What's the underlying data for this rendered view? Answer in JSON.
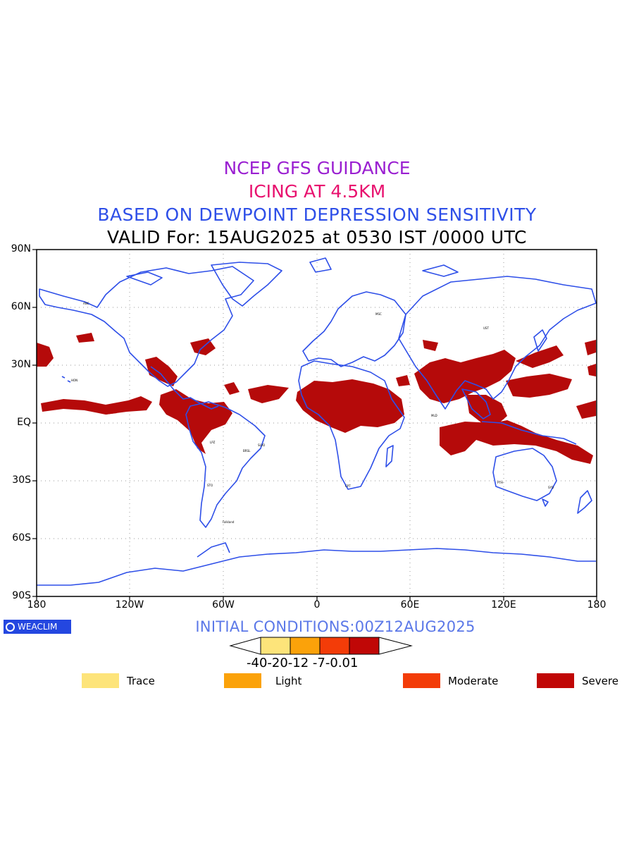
{
  "titles": {
    "line1": "NCEP GFS GUIDANCE",
    "line2": "ICING AT 4.5KM",
    "line3": "BASED ON DEWPOINT DEPRESSION SENSITIVITY",
    "line4": "VALID For: 15AUG2025 at 0530 IST /0000 UTC"
  },
  "axes": {
    "lat_labels": [
      "90N",
      "60N",
      "30N",
      "EQ",
      "30S",
      "60S",
      "90S"
    ],
    "lon_labels": [
      "180",
      "120W",
      "60W",
      "0",
      "60E",
      "120E",
      "180"
    ]
  },
  "logo": {
    "text": "WEACLIM"
  },
  "initial_conditions": "INITIAL CONDITIONS:00Z12AUG2025",
  "colorbar": {
    "tick_text": "-40-20-12 -7-0.01",
    "colors": [
      "#fde47a",
      "#fba20a",
      "#f33c08",
      "#c00706"
    ]
  },
  "legend": [
    {
      "label": "Trace",
      "color": "#fde47a"
    },
    {
      "label": "Light",
      "color": "#fba20a"
    },
    {
      "label": "Moderate",
      "color": "#f33c08"
    },
    {
      "label": "Severe",
      "color": "#c00706"
    }
  ],
  "map_colors": {
    "coast": "#2e4fe8",
    "icing": "#b50a0a",
    "grid": "#9a9a9a"
  },
  "stations": [
    "ANC",
    "MSC",
    "UST",
    "HON",
    "BRSL",
    "SLVD",
    "CPT",
    "PTH",
    "SYD",
    "MLD",
    "Falkland",
    "LPZ",
    "STO"
  ]
}
